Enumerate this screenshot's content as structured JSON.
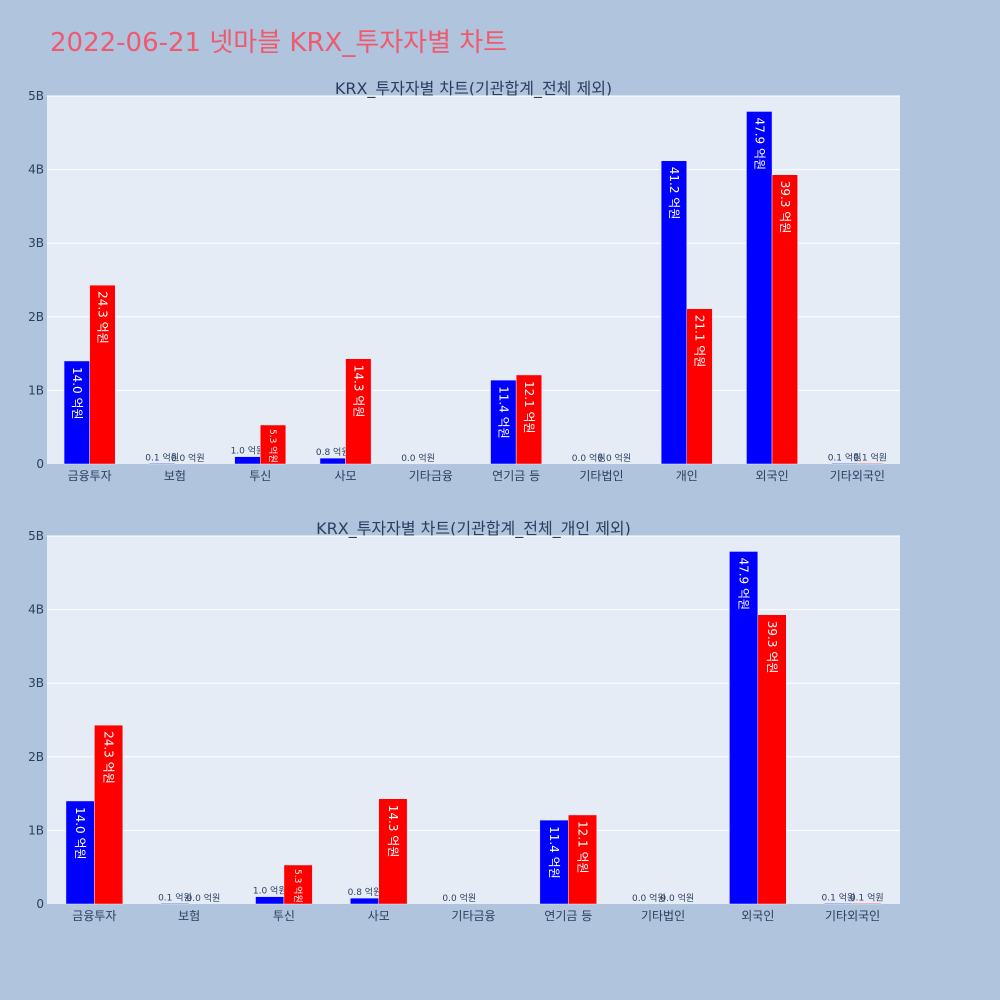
{
  "title": "2022-06-21 넷마블 KRX_투자자별 차트",
  "colors": {
    "buy": "#0000ff",
    "sell": "#ff0000",
    "plot_bg": "#e5ecf6",
    "page_bg": "#b0c4de"
  },
  "chart_data": [
    {
      "type": "bar",
      "title": "KRX_투자자별 차트(기관합계_전체 제외)",
      "categories": [
        "금융투자",
        "보험",
        "투신",
        "사모",
        "기타금융",
        "연기금 등",
        "기타법인",
        "개인",
        "외국인",
        "기타외국인"
      ],
      "ylim": [
        0,
        5000000000
      ],
      "yticks": [
        0,
        1000000000,
        2000000000,
        3000000000,
        4000000000,
        5000000000
      ],
      "ytick_labels": [
        "0",
        "1B",
        "2B",
        "3B",
        "4B",
        "5B"
      ],
      "grid": true,
      "series": [
        {
          "color": "#0000ff",
          "values": [
            1400000000,
            10000000,
            100000000,
            80000000,
            0,
            1140000000,
            0,
            4120000000,
            4790000000,
            10000000
          ],
          "labels": [
            "14.0 억원",
            "0.1 억원",
            "1.0 억원",
            "0.8 억원",
            "0.0 억원",
            "11.4 억원",
            "0.0 억원",
            "41.2 억원",
            "47.9 억원",
            "0.1 억원"
          ]
        },
        {
          "color": "#ff0000",
          "values": [
            2430000000,
            0,
            530000000,
            1430000000,
            null,
            1210000000,
            0,
            2110000000,
            3930000000,
            10000000
          ],
          "labels": [
            "24.3 억원",
            "0.0 억원",
            "5.3 억원",
            "14.3 억원",
            "",
            "12.1 억원",
            "0.0 억원",
            "21.1 억원",
            "39.3 억원",
            "0.1 억원"
          ]
        }
      ]
    },
    {
      "type": "bar",
      "title": "KRX_투자자별 차트(기관합계_전체_개인 제외)",
      "categories": [
        "금융투자",
        "보험",
        "투신",
        "사모",
        "기타금융",
        "연기금 등",
        "기타법인",
        "외국인",
        "기타외국인"
      ],
      "ylim": [
        0,
        5000000000
      ],
      "yticks": [
        0,
        1000000000,
        2000000000,
        3000000000,
        4000000000,
        5000000000
      ],
      "ytick_labels": [
        "0",
        "1B",
        "2B",
        "3B",
        "4B",
        "5B"
      ],
      "grid": true,
      "series": [
        {
          "color": "#0000ff",
          "values": [
            1400000000,
            10000000,
            100000000,
            80000000,
            0,
            1140000000,
            0,
            4790000000,
            10000000
          ],
          "labels": [
            "14.0 억원",
            "0.1 억원",
            "1.0 억원",
            "0.8 억원",
            "0.0 억원",
            "11.4 억원",
            "0.0 억원",
            "47.9 억원",
            "0.1 억원"
          ]
        },
        {
          "color": "#ff0000",
          "values": [
            2430000000,
            0,
            530000000,
            1430000000,
            null,
            1210000000,
            0,
            3930000000,
            10000000
          ],
          "labels": [
            "24.3 억원",
            "0.0 억원",
            "5.3 억원",
            "14.3 억원",
            "",
            "12.1 억원",
            "0.0 억원",
            "39.3 억원",
            "0.1 억원"
          ]
        }
      ]
    }
  ]
}
